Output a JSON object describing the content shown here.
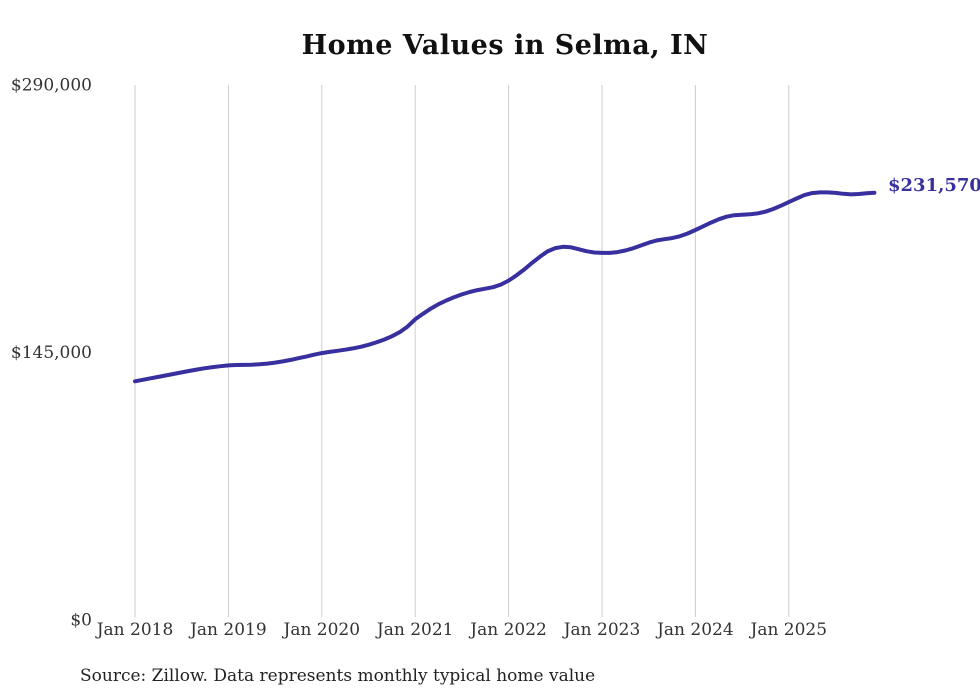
{
  "chart_data": {
    "type": "line",
    "title": "Home Values in Selma, IN",
    "xlabel": "",
    "ylabel": "",
    "ylim": [
      0,
      290000
    ],
    "grid": "vertical-only",
    "legend_position": "none",
    "line_color": "#37309e",
    "gridline_color": "#cccccc",
    "axis_text_color": "#333333",
    "y_tick_labels": [
      "$0",
      "$145,000",
      "$290,000"
    ],
    "y_tick_values": [
      0,
      145000,
      290000
    ],
    "x_tick_labels": [
      "Jan 2018",
      "Jan 2019",
      "Jan 2020",
      "Jan 2021",
      "Jan 2022",
      "Jan 2023",
      "Jan 2024",
      "Jan 2025"
    ],
    "series": [
      {
        "name": "Monthly typical home value",
        "start_month": "Jan 2018",
        "end_month": "Dec 2025",
        "frequency": "monthly",
        "values": [
          129400,
          130200,
          131000,
          131800,
          132600,
          133400,
          134200,
          135000,
          135800,
          136500,
          137100,
          137600,
          138000,
          138200,
          138300,
          138400,
          138600,
          139000,
          139500,
          140200,
          141000,
          141900,
          142800,
          143800,
          144700,
          145300,
          145900,
          146500,
          147200,
          148100,
          149200,
          150500,
          152000,
          153800,
          156000,
          159000,
          163000,
          166000,
          168800,
          171200,
          173200,
          175000,
          176500,
          177800,
          178800,
          179600,
          180400,
          181800,
          184000,
          186800,
          190000,
          193500,
          196800,
          199800,
          201600,
          202300,
          202000,
          201000,
          199900,
          199200,
          199000,
          199000,
          199400,
          200300,
          201500,
          203000,
          204500,
          205700,
          206400,
          207000,
          208000,
          209500,
          211400,
          213400,
          215400,
          217200,
          218600,
          219400,
          219700,
          219900,
          220400,
          221300,
          222800,
          224600,
          226500,
          228500,
          230300,
          231400,
          231800,
          231800,
          231500,
          231000,
          230700,
          230900,
          231300,
          231570
        ]
      }
    ],
    "end_label": "$231,570",
    "end_value": 231570
  },
  "source_note": "Source: Zillow. Data represents monthly typical home value"
}
